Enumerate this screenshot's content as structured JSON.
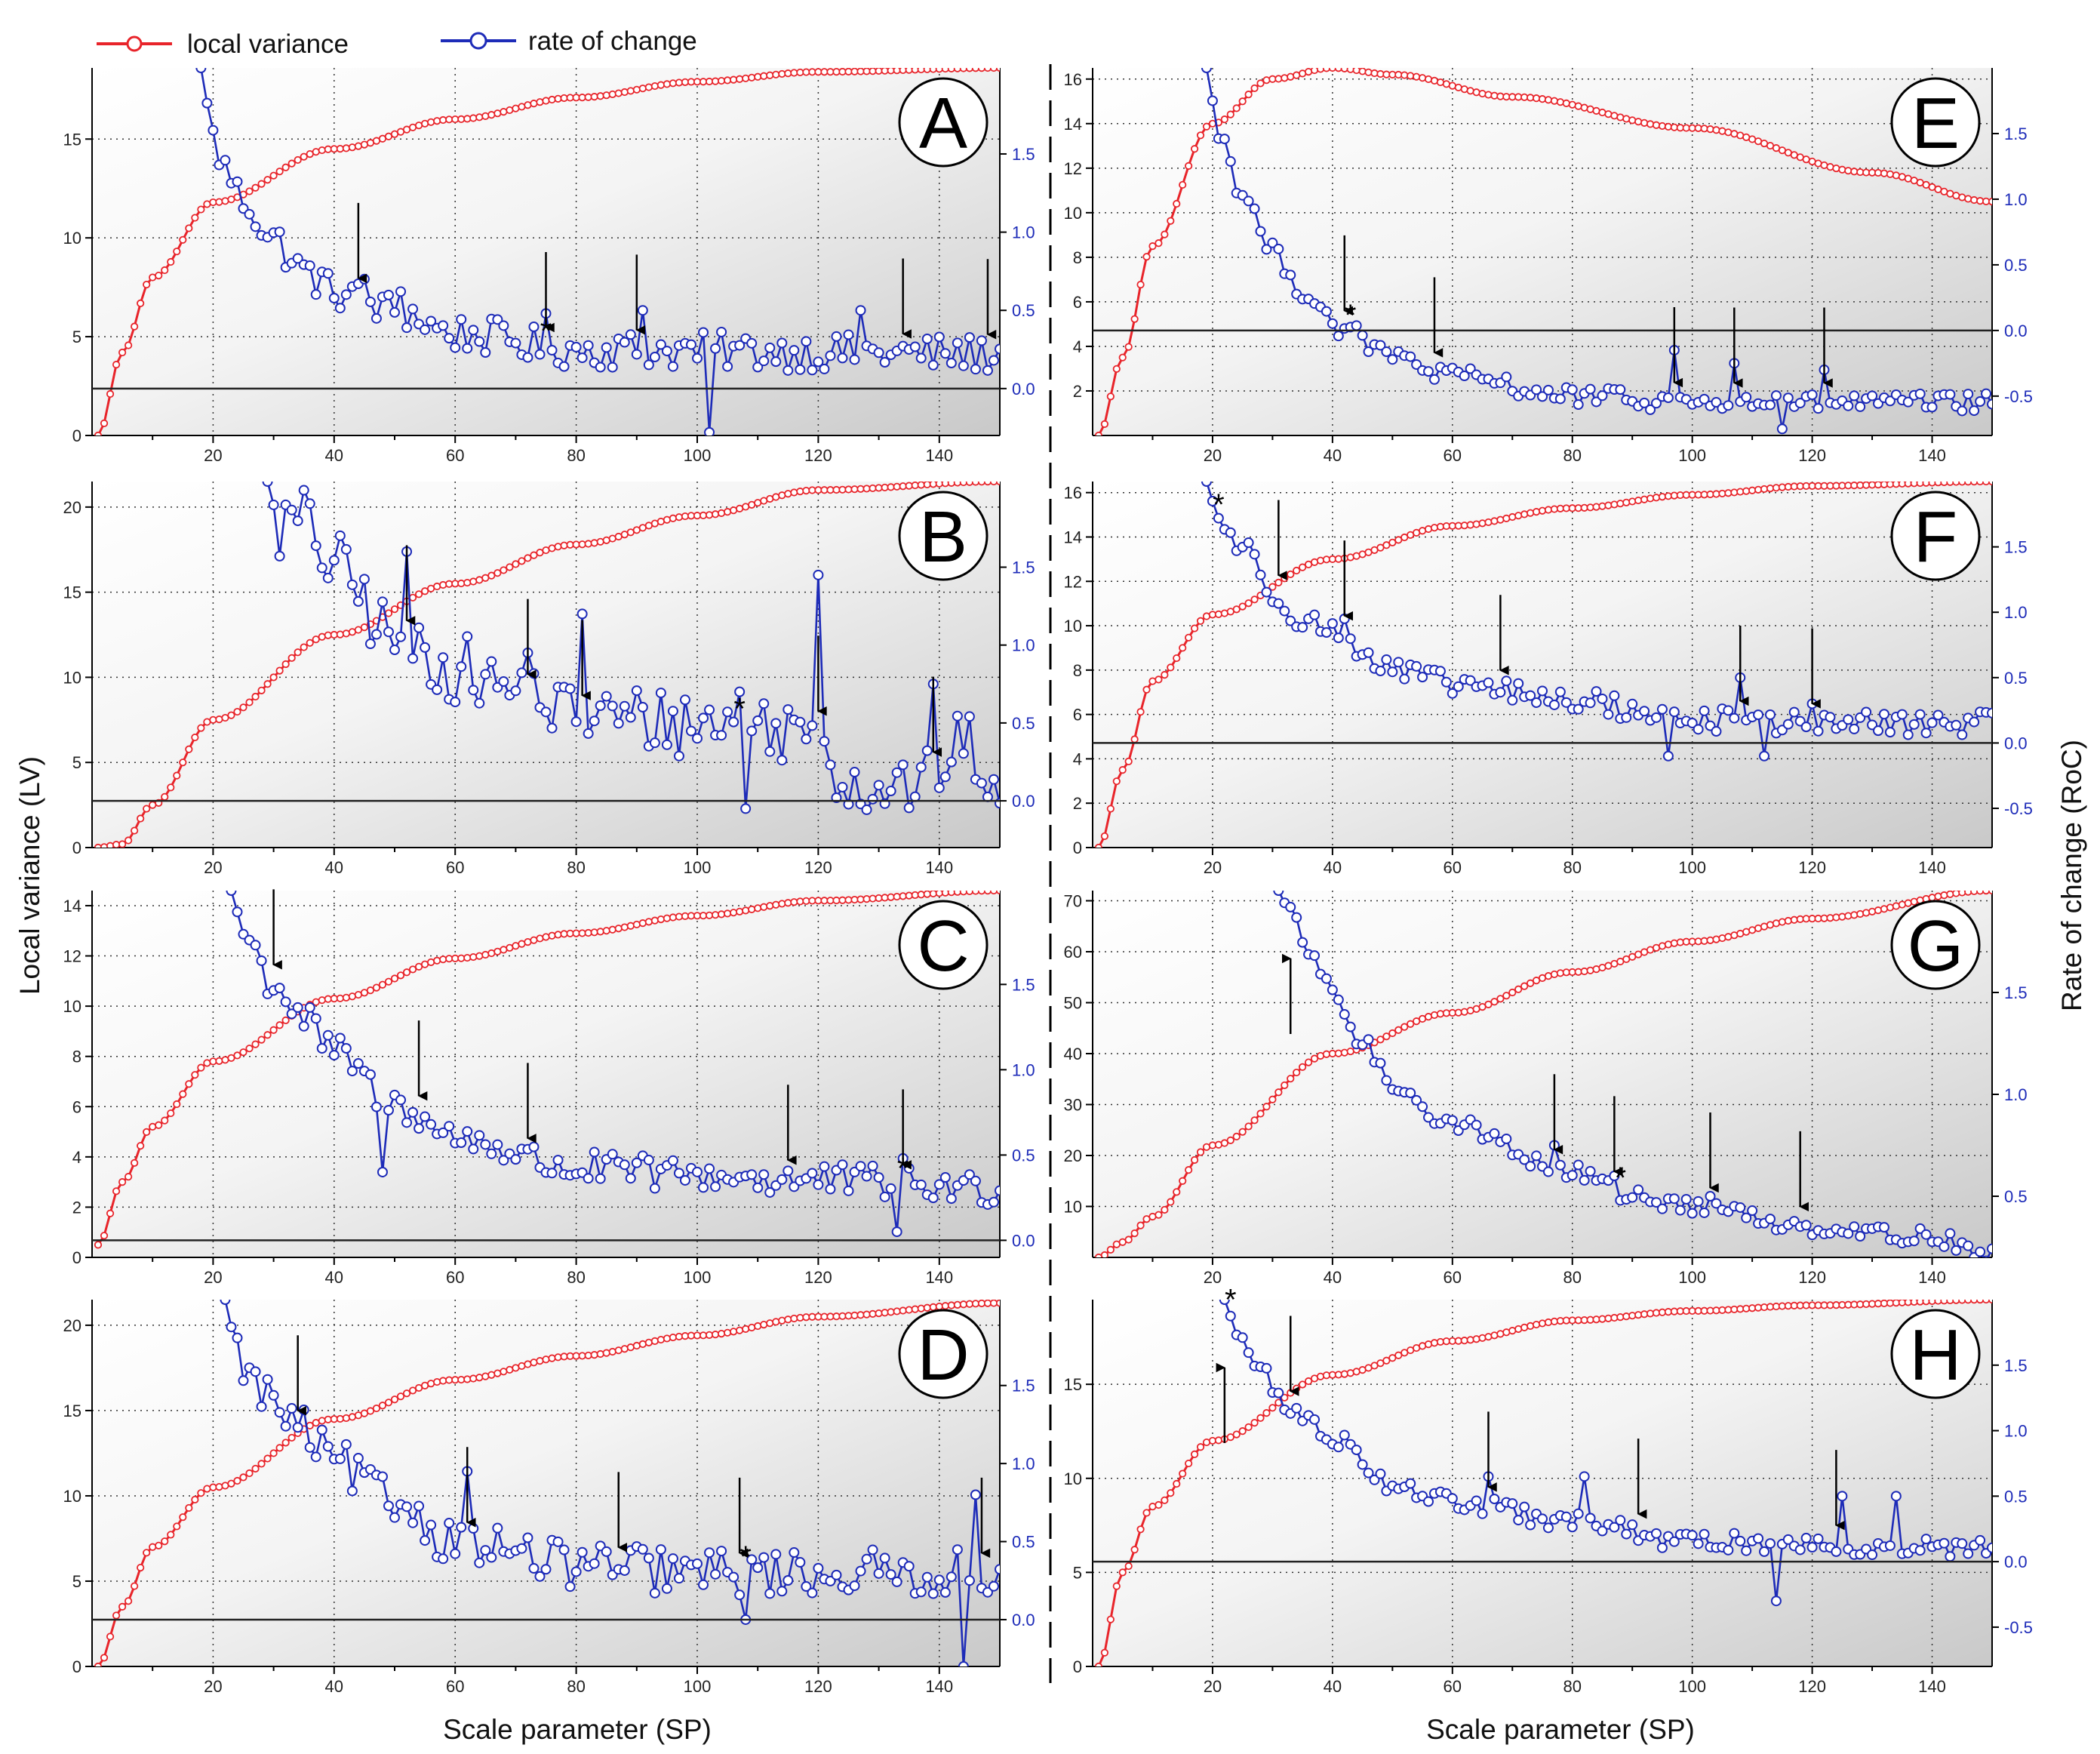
{
  "legend": {
    "lv_label": "local variance",
    "roc_label": "rate of change"
  },
  "axis_labels": {
    "x_left": "Scale parameter (SP)",
    "x_right": "Scale parameter (SP)",
    "y_left": "Local variance (LV)",
    "y_right": "Rate of change (RoC)"
  },
  "colors": {
    "lv": "#e8242a",
    "roc": "#1d2bb8"
  },
  "chart_data": [
    {
      "panel": "A",
      "type": "line",
      "xlim": [
        0,
        150
      ],
      "xticks": [
        20,
        40,
        60,
        80,
        100,
        120,
        140
      ],
      "lv_ylim": [
        0,
        18.6
      ],
      "lv_ticks": [
        0,
        5,
        10,
        15
      ],
      "roc_ylim": [
        -0.3,
        2.05
      ],
      "roc_ticks": [
        0.0,
        0.5,
        1.0,
        1.5
      ],
      "lv_anchors": [
        [
          1,
          0
        ],
        [
          5,
          4.2
        ],
        [
          10,
          8.0
        ],
        [
          20,
          11.8
        ],
        [
          40,
          14.5
        ],
        [
          60,
          16.0
        ],
        [
          80,
          17.1
        ],
        [
          100,
          17.9
        ],
        [
          120,
          18.4
        ],
        [
          150,
          18.6
        ]
      ],
      "roc_anchors": [
        [
          18,
          2.05
        ],
        [
          20,
          1.6
        ],
        [
          22,
          1.4
        ],
        [
          25,
          1.2
        ],
        [
          30,
          0.95
        ],
        [
          35,
          0.75
        ],
        [
          40,
          0.62
        ],
        [
          50,
          0.5
        ],
        [
          60,
          0.35
        ],
        [
          80,
          0.25
        ],
        [
          150,
          0.22
        ]
      ],
      "roc_noise": 0.12,
      "roc_peaks": [
        [
          45,
          0.7
        ],
        [
          51,
          0.62
        ],
        [
          75,
          0.48
        ],
        [
          91,
          0.5
        ],
        [
          102,
          -0.28
        ],
        [
          127,
          0.5
        ]
      ],
      "hline": 0.0,
      "arrows": [
        {
          "x": 44,
          "dir": "down"
        },
        {
          "x": 75,
          "dir": "down"
        },
        {
          "x": 90,
          "dir": "down"
        },
        {
          "x": 134,
          "dir": "down"
        },
        {
          "x": 148,
          "dir": "down"
        }
      ],
      "star_x": 75
    },
    {
      "panel": "B",
      "type": "line",
      "xlim": [
        0,
        150
      ],
      "xticks": [
        20,
        40,
        60,
        80,
        100,
        120,
        140
      ],
      "lv_ylim": [
        0,
        21.5
      ],
      "lv_ticks": [
        0,
        5,
        10,
        15,
        20
      ],
      "roc_ylim": [
        -0.3,
        2.05
      ],
      "roc_ticks": [
        0.0,
        0.5,
        1.0,
        1.5
      ],
      "lv_anchors": [
        [
          1,
          0
        ],
        [
          5,
          0.2
        ],
        [
          10,
          2.5
        ],
        [
          20,
          7.5
        ],
        [
          40,
          12.5
        ],
        [
          60,
          15.5
        ],
        [
          80,
          17.8
        ],
        [
          100,
          19.5
        ],
        [
          120,
          21.0
        ],
        [
          150,
          21.5
        ]
      ],
      "roc_anchors": [
        [
          29,
          2.05
        ],
        [
          31,
          1.75
        ],
        [
          35,
          1.8
        ],
        [
          40,
          1.5
        ],
        [
          50,
          1.05
        ],
        [
          60,
          0.85
        ],
        [
          70,
          0.7
        ],
        [
          80,
          0.55
        ],
        [
          100,
          0.5
        ],
        [
          120,
          0.45
        ],
        [
          125,
          0.1
        ],
        [
          135,
          0.1
        ],
        [
          145,
          0.35
        ],
        [
          150,
          0.0
        ]
      ],
      "roc_noise": 0.22,
      "roc_peaks": [
        [
          52,
          1.6
        ],
        [
          72,
          0.95
        ],
        [
          81,
          1.2
        ],
        [
          107,
          0.7
        ],
        [
          108,
          -0.05
        ],
        [
          120,
          1.45
        ],
        [
          139,
          0.75
        ]
      ],
      "hline": 0.0,
      "arrows": [
        {
          "x": 52,
          "dir": "down"
        },
        {
          "x": 72,
          "dir": "down"
        },
        {
          "x": 81,
          "dir": "down"
        },
        {
          "x": 120,
          "dir": "down"
        },
        {
          "x": 139,
          "dir": "down"
        }
      ],
      "star_x": 107
    },
    {
      "panel": "C",
      "type": "line",
      "xlim": [
        0,
        150
      ],
      "xticks": [
        20,
        40,
        60,
        80,
        100,
        120,
        140
      ],
      "lv_ylim": [
        0,
        14.6
      ],
      "lv_ticks": [
        0,
        2,
        4,
        6,
        8,
        10,
        12,
        14
      ],
      "roc_ylim": [
        -0.1,
        2.05
      ],
      "roc_ticks": [
        0.0,
        0.5,
        1.0,
        1.5
      ],
      "lv_anchors": [
        [
          1,
          0.5
        ],
        [
          5,
          3.0
        ],
        [
          10,
          5.2
        ],
        [
          20,
          7.8
        ],
        [
          40,
          10.3
        ],
        [
          60,
          11.9
        ],
        [
          80,
          12.9
        ],
        [
          100,
          13.6
        ],
        [
          120,
          14.2
        ],
        [
          150,
          14.6
        ]
      ],
      "roc_anchors": [
        [
          23,
          2.05
        ],
        [
          25,
          1.8
        ],
        [
          30,
          1.5
        ],
        [
          35,
          1.3
        ],
        [
          40,
          1.1
        ],
        [
          50,
          0.8
        ],
        [
          60,
          0.6
        ],
        [
          80,
          0.42
        ],
        [
          100,
          0.38
        ],
        [
          120,
          0.35
        ],
        [
          150,
          0.3
        ]
      ],
      "roc_noise": 0.1,
      "roc_peaks": [
        [
          48,
          0.4
        ],
        [
          53,
          0.75
        ],
        [
          134,
          0.48
        ],
        [
          133,
          0.05
        ]
      ],
      "hline": 0.0,
      "arrows": [
        {
          "x": 30,
          "dir": "down"
        },
        {
          "x": 54,
          "dir": "down"
        },
        {
          "x": 72,
          "dir": "down"
        },
        {
          "x": 115,
          "dir": "down"
        },
        {
          "x": 134,
          "dir": "down"
        }
      ],
      "star_x": 134
    },
    {
      "panel": "D",
      "type": "line",
      "xlim": [
        0,
        150
      ],
      "xticks": [
        20,
        40,
        60,
        80,
        100,
        120,
        140
      ],
      "lv_ylim": [
        0,
        21.5
      ],
      "lv_ticks": [
        0,
        5,
        10,
        15,
        20
      ],
      "roc_ylim": [
        -0.3,
        2.05
      ],
      "roc_ticks": [
        0.0,
        0.5,
        1.0,
        1.5
      ],
      "lv_anchors": [
        [
          1,
          0
        ],
        [
          5,
          3.5
        ],
        [
          10,
          7.0
        ],
        [
          20,
          10.5
        ],
        [
          40,
          14.5
        ],
        [
          60,
          16.8
        ],
        [
          80,
          18.2
        ],
        [
          100,
          19.4
        ],
        [
          120,
          20.5
        ],
        [
          150,
          21.3
        ]
      ],
      "roc_anchors": [
        [
          22,
          2.05
        ],
        [
          24,
          1.7
        ],
        [
          28,
          1.45
        ],
        [
          35,
          1.2
        ],
        [
          40,
          1.0
        ],
        [
          50,
          0.75
        ],
        [
          60,
          0.5
        ],
        [
          80,
          0.35
        ],
        [
          100,
          0.3
        ],
        [
          150,
          0.3
        ]
      ],
      "roc_noise": 0.15,
      "roc_peaks": [
        [
          62,
          0.95
        ],
        [
          108,
          0.3
        ],
        [
          108,
          0.0
        ],
        [
          144,
          -0.3
        ],
        [
          146,
          0.8
        ]
      ],
      "hline": 0.0,
      "arrows": [
        {
          "x": 34,
          "dir": "down"
        },
        {
          "x": 62,
          "dir": "down"
        },
        {
          "x": 87,
          "dir": "down"
        },
        {
          "x": 107,
          "dir": "down"
        },
        {
          "x": 147,
          "dir": "down"
        }
      ],
      "star_x": 108
    },
    {
      "panel": "E",
      "type": "line",
      "xlim": [
        0,
        150
      ],
      "xticks": [
        20,
        40,
        60,
        80,
        100,
        120,
        140
      ],
      "lv_ylim": [
        0,
        16.5
      ],
      "lv_ticks": [
        2,
        4,
        6,
        8,
        10,
        12,
        14,
        16
      ],
      "roc_ylim": [
        -0.8,
        2.0
      ],
      "roc_ticks": [
        -0.5,
        0.0,
        0.5,
        1.0,
        1.5
      ],
      "lv_anchors": [
        [
          1,
          0
        ],
        [
          5,
          3.5
        ],
        [
          10,
          8.5
        ],
        [
          20,
          14.0
        ],
        [
          30,
          16.0
        ],
        [
          40,
          16.5
        ],
        [
          50,
          16.2
        ],
        [
          70,
          15.2
        ],
        [
          100,
          13.8
        ],
        [
          130,
          11.8
        ],
        [
          150,
          10.5
        ]
      ],
      "roc_anchors": [
        [
          19,
          2.0
        ],
        [
          21,
          1.5
        ],
        [
          25,
          1.05
        ],
        [
          30,
          0.6
        ],
        [
          35,
          0.3
        ],
        [
          42,
          0.0
        ],
        [
          50,
          -0.2
        ],
        [
          60,
          -0.35
        ],
        [
          80,
          -0.5
        ],
        [
          100,
          -0.55
        ],
        [
          150,
          -0.55
        ]
      ],
      "roc_noise": 0.07,
      "roc_peaks": [
        [
          97,
          -0.15
        ],
        [
          107,
          -0.25
        ],
        [
          115,
          -0.75
        ],
        [
          122,
          -0.3
        ]
      ],
      "hline": 0.0,
      "arrows": [
        {
          "x": 42,
          "dir": "down"
        },
        {
          "x": 57,
          "dir": "down"
        },
        {
          "x": 97,
          "dir": "down"
        },
        {
          "x": 107,
          "dir": "down"
        },
        {
          "x": 122,
          "dir": "down"
        }
      ],
      "star_x": 43
    },
    {
      "panel": "F",
      "type": "line",
      "xlim": [
        0,
        150
      ],
      "xticks": [
        20,
        40,
        60,
        80,
        100,
        120,
        140
      ],
      "lv_ylim": [
        0,
        16.5
      ],
      "lv_ticks": [
        0,
        2,
        4,
        6,
        8,
        10,
        12,
        14,
        16
      ],
      "roc_ylim": [
        -0.8,
        2.0
      ],
      "roc_ticks": [
        -0.5,
        0.0,
        0.5,
        1.0,
        1.5
      ],
      "lv_anchors": [
        [
          1,
          0
        ],
        [
          5,
          3.5
        ],
        [
          10,
          7.5
        ],
        [
          20,
          10.5
        ],
        [
          40,
          13.0
        ],
        [
          60,
          14.5
        ],
        [
          80,
          15.3
        ],
        [
          100,
          15.9
        ],
        [
          120,
          16.3
        ],
        [
          150,
          16.5
        ]
      ],
      "roc_anchors": [
        [
          19,
          2.0
        ],
        [
          21,
          1.7
        ],
        [
          25,
          1.5
        ],
        [
          30,
          1.15
        ],
        [
          35,
          0.95
        ],
        [
          40,
          0.85
        ],
        [
          50,
          0.55
        ],
        [
          60,
          0.45
        ],
        [
          80,
          0.32
        ],
        [
          100,
          0.18
        ],
        [
          120,
          0.15
        ],
        [
          150,
          0.15
        ]
      ],
      "roc_noise": 0.09,
      "roc_peaks": [
        [
          42,
          0.95
        ],
        [
          96,
          -0.1
        ],
        [
          108,
          0.5
        ],
        [
          112,
          -0.1
        ],
        [
          120,
          0.3
        ]
      ],
      "hline": 0.0,
      "arrows": [
        {
          "x": 31,
          "dir": "down"
        },
        {
          "x": 42,
          "dir": "down"
        },
        {
          "x": 68,
          "dir": "down"
        },
        {
          "x": 108,
          "dir": "down"
        },
        {
          "x": 120,
          "dir": "down"
        }
      ],
      "star_x": 21
    },
    {
      "panel": "G",
      "type": "line",
      "xlim": [
        0,
        150
      ],
      "xticks": [
        20,
        40,
        60,
        80,
        100,
        120,
        140
      ],
      "lv_ylim": [
        0,
        72
      ],
      "lv_ticks": [
        10,
        20,
        30,
        40,
        50,
        60,
        70
      ],
      "roc_ylim": [
        0.2,
        2.0
      ],
      "roc_ticks": [
        0.5,
        1.0,
        1.5
      ],
      "lv_anchors": [
        [
          1,
          0
        ],
        [
          5,
          3.0
        ],
        [
          10,
          8.0
        ],
        [
          20,
          22.0
        ],
        [
          40,
          40.0
        ],
        [
          60,
          48.0
        ],
        [
          80,
          56.0
        ],
        [
          100,
          62.0
        ],
        [
          120,
          66.5
        ],
        [
          150,
          72.0
        ]
      ],
      "roc_anchors": [
        [
          31,
          2.0
        ],
        [
          33,
          1.88
        ],
        [
          36,
          1.7
        ],
        [
          40,
          1.5
        ],
        [
          45,
          1.25
        ],
        [
          50,
          1.05
        ],
        [
          60,
          0.85
        ],
        [
          80,
          0.62
        ],
        [
          90,
          0.5
        ],
        [
          100,
          0.45
        ],
        [
          120,
          0.35
        ],
        [
          140,
          0.3
        ],
        [
          150,
          0.22
        ]
      ],
      "roc_noise": 0.04,
      "roc_peaks": [
        [
          77,
          0.75
        ],
        [
          87,
          0.6
        ],
        [
          103,
          0.5
        ],
        [
          147,
          0.2
        ]
      ],
      "hline": null,
      "arrows": [
        {
          "x": 33,
          "dir": "up"
        },
        {
          "x": 77,
          "dir": "down"
        },
        {
          "x": 87,
          "dir": "down"
        },
        {
          "x": 103,
          "dir": "down"
        },
        {
          "x": 118,
          "dir": "down"
        }
      ],
      "star_x": 88
    },
    {
      "panel": "H",
      "type": "line",
      "xlim": [
        0,
        150
      ],
      "xticks": [
        20,
        40,
        60,
        80,
        100,
        120,
        140
      ],
      "lv_ylim": [
        0,
        19.5
      ],
      "lv_ticks": [
        0,
        5,
        10,
        15
      ],
      "roc_ylim": [
        -0.8,
        2.0
      ],
      "roc_ticks": [
        -0.5,
        0.0,
        0.5,
        1.0,
        1.5
      ],
      "lv_anchors": [
        [
          1,
          0
        ],
        [
          5,
          5.0
        ],
        [
          10,
          8.5
        ],
        [
          20,
          12.0
        ],
        [
          40,
          15.5
        ],
        [
          60,
          17.3
        ],
        [
          80,
          18.4
        ],
        [
          100,
          18.9
        ],
        [
          120,
          19.2
        ],
        [
          150,
          19.5
        ]
      ],
      "roc_anchors": [
        [
          22,
          2.0
        ],
        [
          24,
          1.75
        ],
        [
          28,
          1.45
        ],
        [
          33,
          1.15
        ],
        [
          40,
          0.95
        ],
        [
          50,
          0.6
        ],
        [
          60,
          0.45
        ],
        [
          80,
          0.3
        ],
        [
          100,
          0.15
        ],
        [
          150,
          0.1
        ]
      ],
      "roc_noise": 0.07,
      "roc_peaks": [
        [
          66,
          0.65
        ],
        [
          82,
          0.65
        ],
        [
          114,
          -0.3
        ],
        [
          125,
          0.5
        ],
        [
          134,
          0.5
        ]
      ],
      "hline": 0.0,
      "arrows": [
        {
          "x": 22,
          "dir": "up"
        },
        {
          "x": 33,
          "dir": "down"
        },
        {
          "x": 66,
          "dir": "down"
        },
        {
          "x": 91,
          "dir": "down"
        },
        {
          "x": 124,
          "dir": "down"
        }
      ],
      "star_x": 23
    }
  ]
}
